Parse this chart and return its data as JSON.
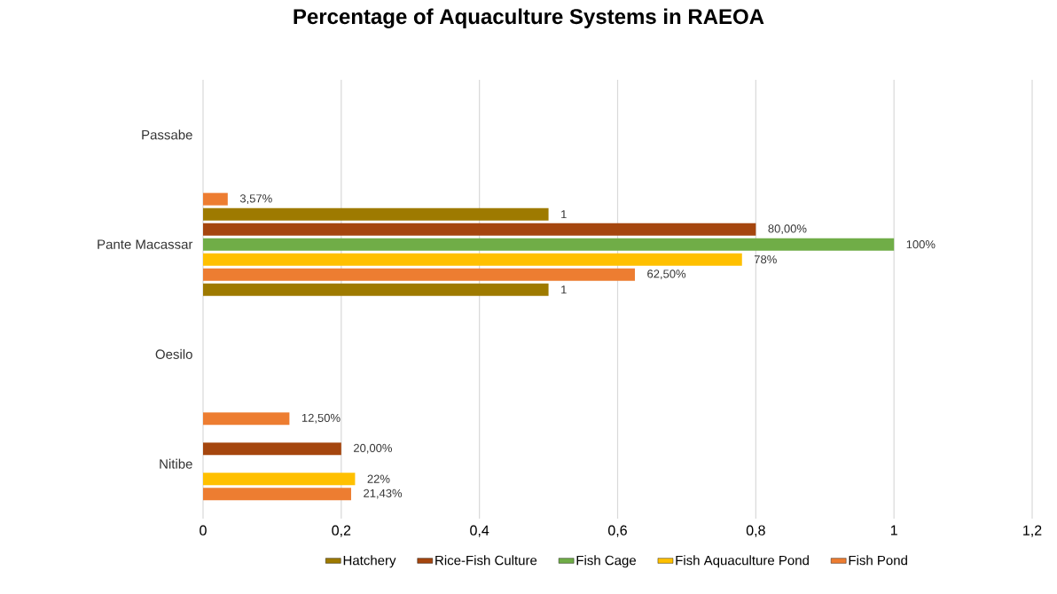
{
  "chart_data": {
    "type": "bar",
    "orientation": "horizontal",
    "title": "Percentage of Aquaculture Systems in RAEOA",
    "categories": [
      "Passabe",
      "Pante Macassar",
      "Oesilo",
      "Nitibe"
    ],
    "series": [
      {
        "color": "#ed7d31",
        "values": [
          null,
          0.0357,
          null,
          0.125
        ],
        "value_labels": [
          null,
          "3,57%",
          null,
          "12,50%"
        ]
      },
      {
        "name": "Hatchery",
        "color": "#9e7a00",
        "values": [
          null,
          0.5,
          null,
          null
        ],
        "value_labels": [
          null,
          "1",
          null,
          null
        ]
      },
      {
        "name": "Rice-Fish Culture",
        "color": "#a5460e",
        "values": [
          null,
          0.8,
          null,
          0.2
        ],
        "value_labels": [
          null,
          "80,00%",
          null,
          "20,00%"
        ]
      },
      {
        "name": "Fish Cage",
        "color": "#70ad47",
        "values": [
          null,
          1,
          null,
          null
        ],
        "value_labels": [
          null,
          "100%",
          null,
          null
        ]
      },
      {
        "name": "Fish Aquaculture Pond",
        "color": "#ffc000",
        "values": [
          null,
          0.78,
          null,
          0.22
        ],
        "value_labels": [
          null,
          "78%",
          null,
          "22%"
        ]
      },
      {
        "name": "Fish Pond",
        "color": "#ed7d31",
        "values": [
          null,
          0.625,
          null,
          0.2143
        ],
        "value_labels": [
          null,
          "62,50%",
          null,
          "21,43%"
        ]
      },
      {
        "color": "#9e7a00",
        "values": [
          null,
          0.5,
          null,
          null
        ],
        "value_labels": [
          null,
          "1",
          null,
          null
        ]
      }
    ],
    "xlim": [
      0,
      1.2
    ],
    "xticks": [
      0,
      {
        "value": 0.2,
        "label": "0,2"
      },
      {
        "value": 0.4,
        "label": "0,4"
      },
      {
        "value": 0.6,
        "label": "0,6"
      },
      {
        "value": 0.8,
        "label": "0,8"
      },
      1,
      {
        "value": 1.2,
        "label": "1,2"
      }
    ],
    "grid": "x",
    "legend": "bottom"
  }
}
